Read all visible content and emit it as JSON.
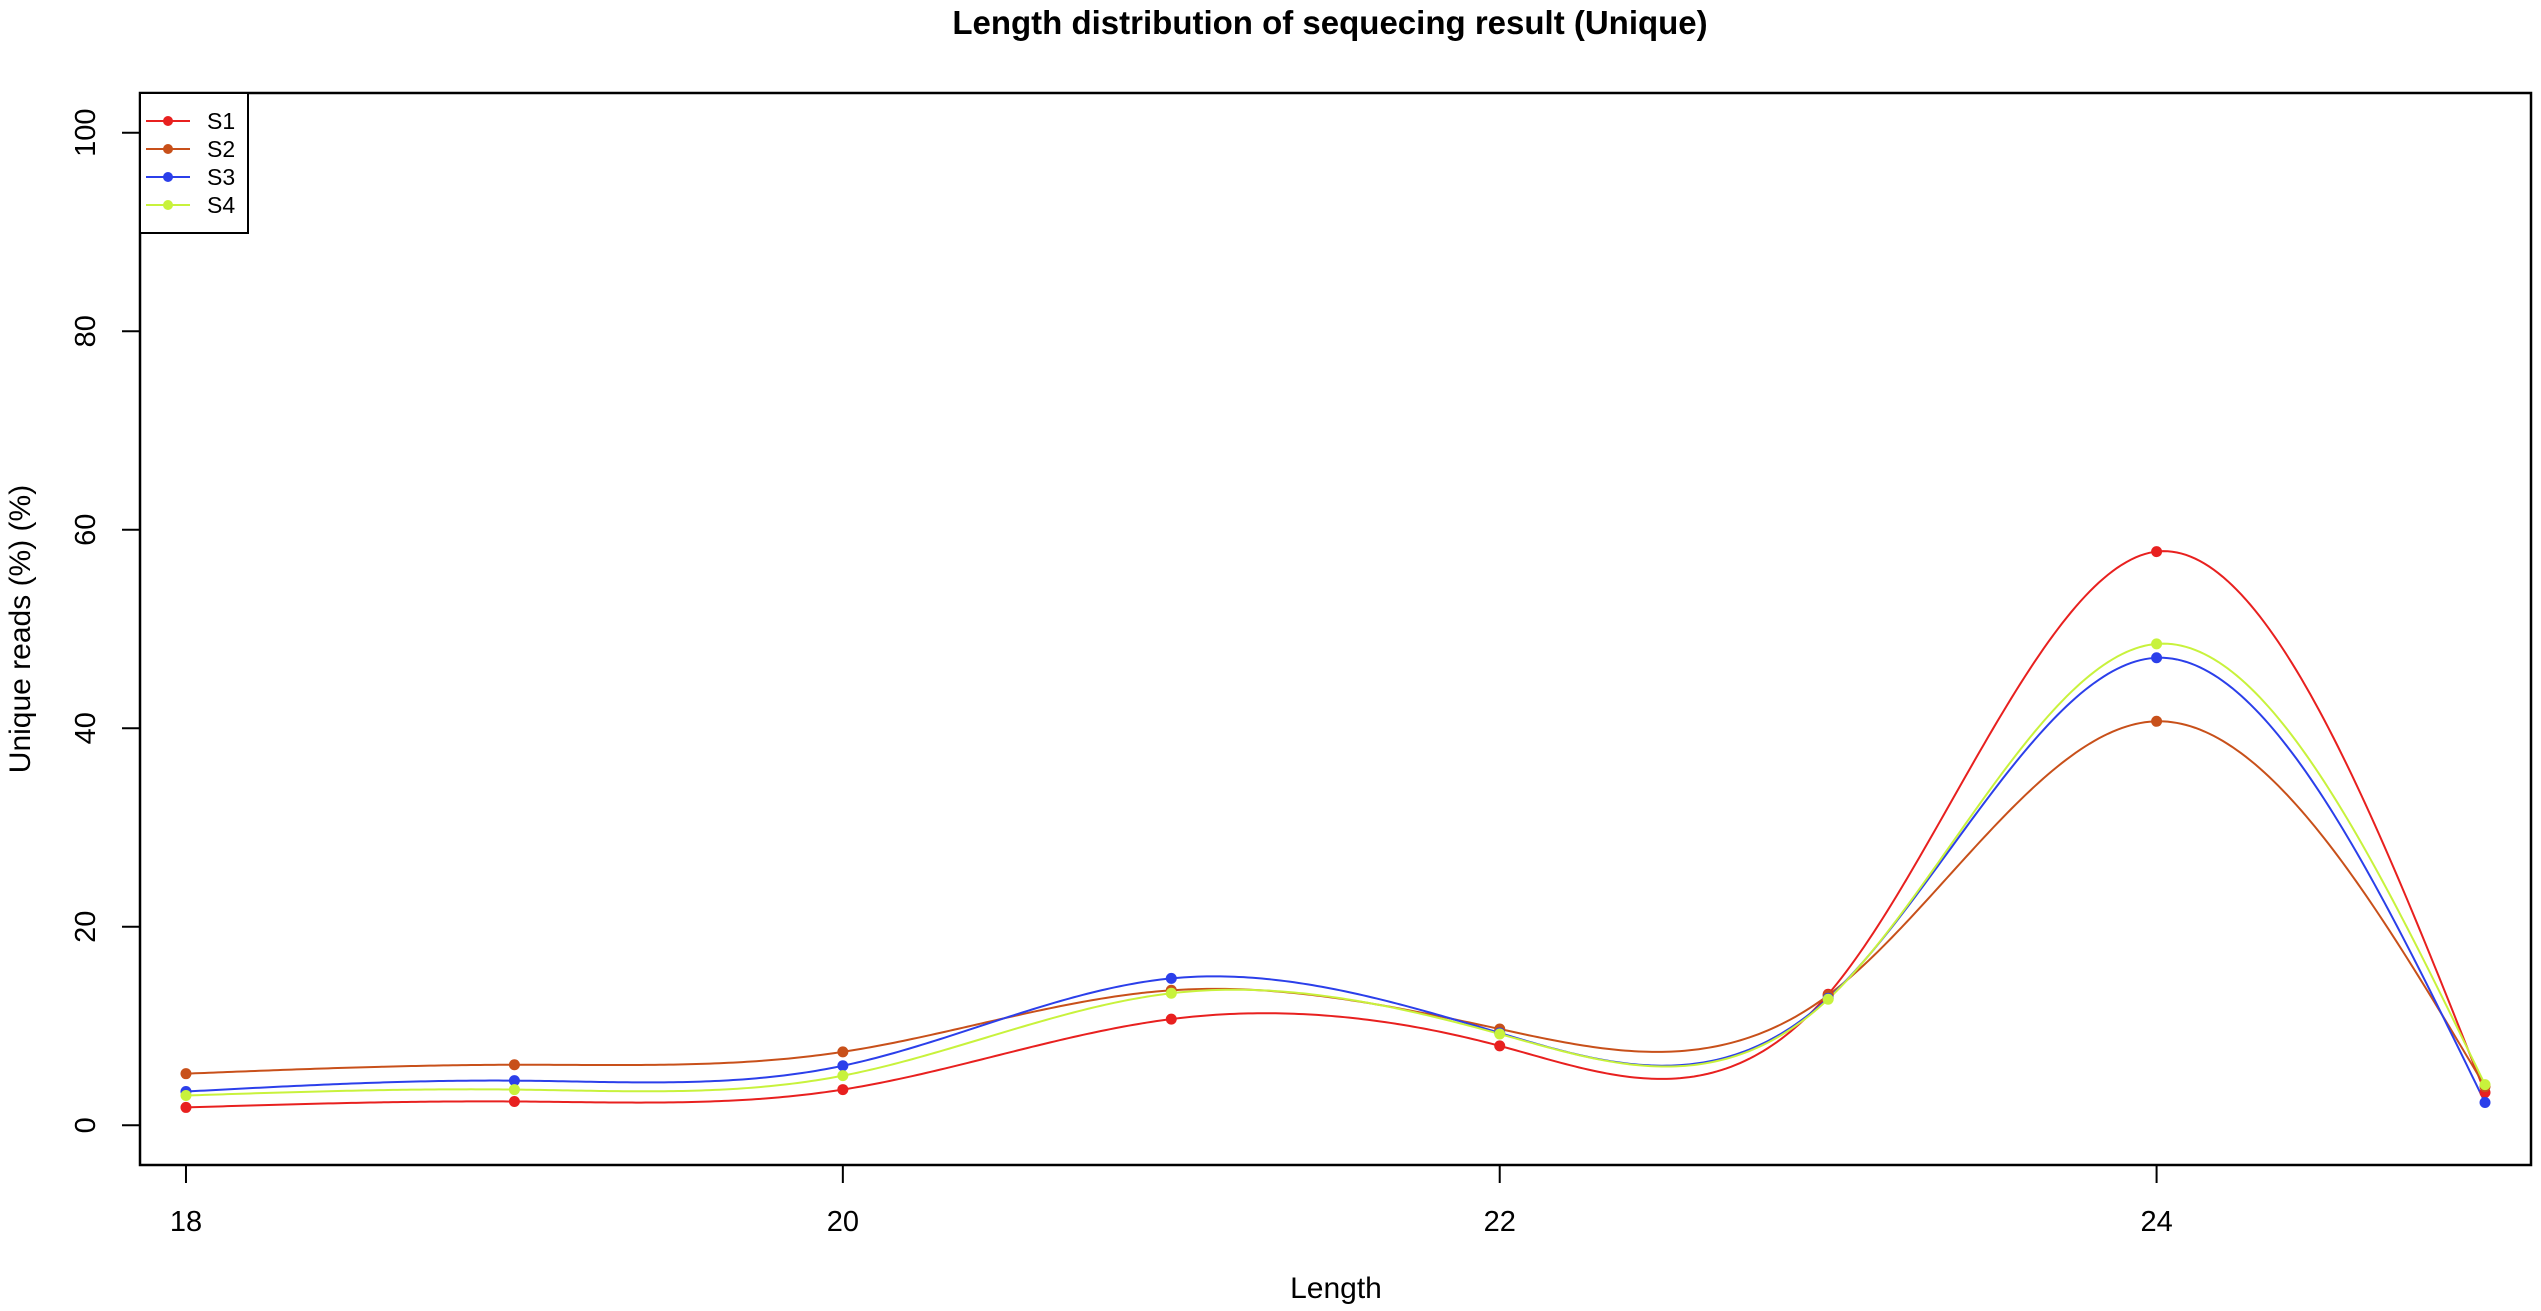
{
  "chart_data": {
    "type": "line",
    "title": "Length distribution of sequecing result (Unique)",
    "xlabel": "Length",
    "ylabel": "Unique reads (%) (%)",
    "x": [
      18,
      19,
      20,
      21,
      22,
      23,
      24,
      25
    ],
    "xlim": [
      17.86,
      25.14
    ],
    "ylim": [
      -4,
      104
    ],
    "x_ticks": [
      18,
      20,
      22,
      24
    ],
    "y_ticks": [
      0,
      20,
      40,
      60,
      80,
      100
    ],
    "grid": false,
    "legend": "top-left",
    "series": [
      {
        "name": "S1",
        "color": "#E8201F",
        "values": [
          1.8,
          2.4,
          3.6,
          10.7,
          8.0,
          13.2,
          57.8,
          3.3
        ]
      },
      {
        "name": "S2",
        "color": "#C8501A",
        "values": [
          5.2,
          6.1,
          7.4,
          13.6,
          9.7,
          13.1,
          40.7,
          3.9
        ]
      },
      {
        "name": "S3",
        "color": "#2B3FEA",
        "values": [
          3.4,
          4.5,
          6.0,
          14.8,
          9.3,
          12.8,
          47.1,
          2.3
        ]
      },
      {
        "name": "S4",
        "color": "#C8F23C",
        "values": [
          3.0,
          3.6,
          5.0,
          13.3,
          9.2,
          12.7,
          48.5,
          4.1
        ]
      }
    ]
  }
}
